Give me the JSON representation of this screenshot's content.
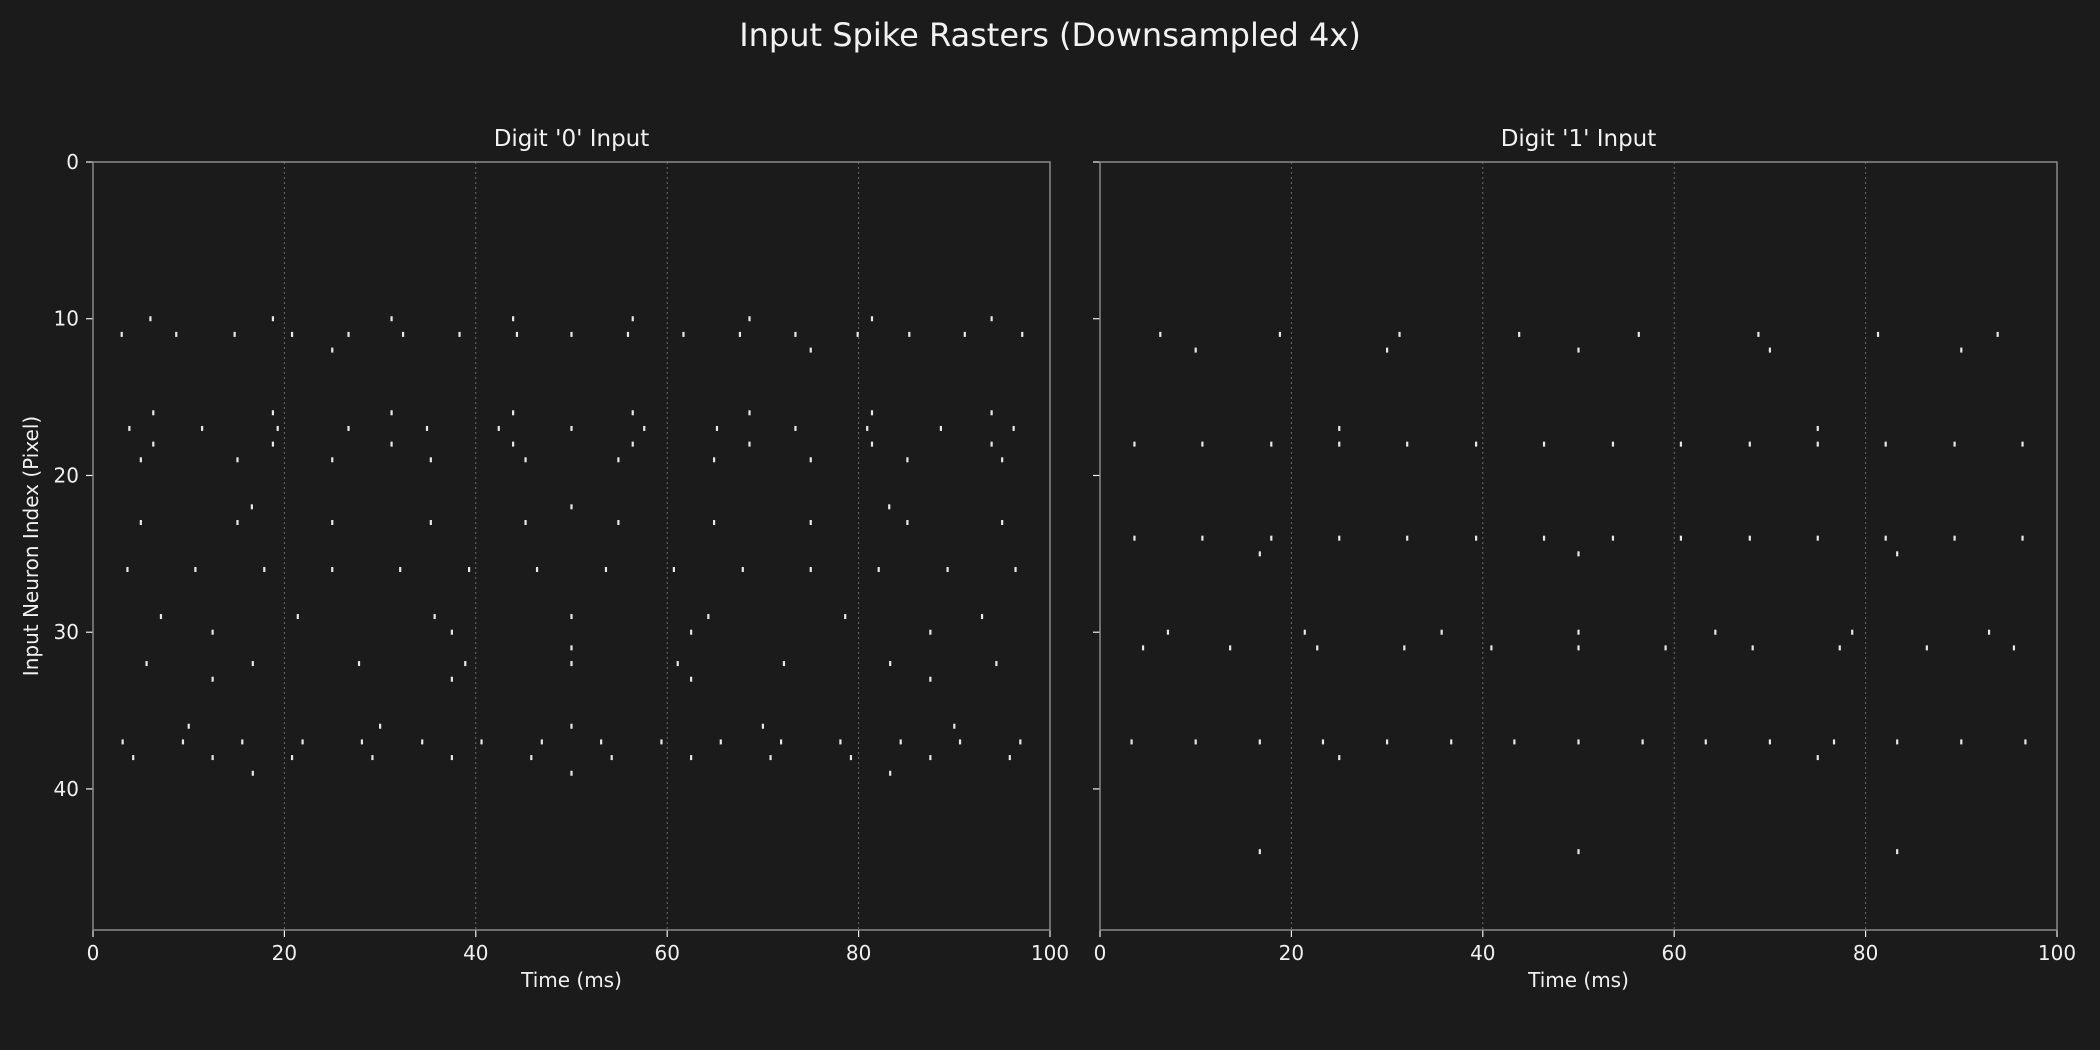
{
  "figure": {
    "title": "Input Spike Rasters (Downsampled 4x)",
    "background": "#1b1b1b",
    "spine_color": "#8a8a8a",
    "grid_color": "#8a8a8a",
    "spike_color": "#e8e8e8",
    "text_color": "#f0f0f0"
  },
  "chart_data": [
    {
      "type": "scatter",
      "marker": "vertical-tick",
      "title": "Digit '0' Input",
      "xlabel": "Time (ms)",
      "ylabel": "Input Neuron Index (Pixel)",
      "xlim": [
        0,
        100
      ],
      "ylim": [
        49,
        0
      ],
      "y_inverted": true,
      "xticks": [
        0,
        20,
        40,
        60,
        80,
        100
      ],
      "yticks": [
        0,
        10,
        20,
        30,
        40
      ],
      "grid": "x-dotted",
      "series": [
        {
          "spikes": [
            [
              3,
              11
            ],
            [
              6,
              10
            ],
            [
              8.7,
              11
            ],
            [
              14.8,
              11
            ],
            [
              18.8,
              10
            ],
            [
              20.8,
              11
            ],
            [
              25,
              12
            ],
            [
              26.7,
              11
            ],
            [
              31.2,
              10
            ],
            [
              32.4,
              11
            ],
            [
              38.3,
              11
            ],
            [
              43.9,
              10
            ],
            [
              44.3,
              11
            ],
            [
              50,
              11
            ],
            [
              55.9,
              11
            ],
            [
              56.4,
              10
            ],
            [
              61.7,
              11
            ],
            [
              67.6,
              11
            ],
            [
              68.6,
              10
            ],
            [
              73.4,
              11
            ],
            [
              75,
              12
            ],
            [
              79.9,
              11
            ],
            [
              81.4,
              10
            ],
            [
              85.3,
              11
            ],
            [
              91.1,
              11
            ],
            [
              93.9,
              10
            ],
            [
              97.1,
              11
            ],
            [
              3.8,
              17
            ],
            [
              6.3,
              16
            ],
            [
              11.4,
              17
            ],
            [
              18.8,
              16
            ],
            [
              19.3,
              17
            ],
            [
              26.7,
              17
            ],
            [
              31.2,
              16
            ],
            [
              34.9,
              17
            ],
            [
              42.4,
              17
            ],
            [
              43.9,
              16
            ],
            [
              50,
              17
            ],
            [
              56.4,
              16
            ],
            [
              57.6,
              17
            ],
            [
              65.2,
              17
            ],
            [
              68.6,
              16
            ],
            [
              73.4,
              17
            ],
            [
              80.9,
              17
            ],
            [
              81.4,
              16
            ],
            [
              88.6,
              17
            ],
            [
              93.9,
              16
            ],
            [
              96.2,
              17
            ],
            [
              6.3,
              18
            ],
            [
              18.8,
              18
            ],
            [
              31.2,
              18
            ],
            [
              43.9,
              18
            ],
            [
              56.4,
              18
            ],
            [
              68.6,
              18
            ],
            [
              81.4,
              18
            ],
            [
              93.9,
              18
            ],
            [
              5,
              19
            ],
            [
              15.1,
              19
            ],
            [
              25,
              19
            ],
            [
              35.3,
              19
            ],
            [
              45.2,
              19
            ],
            [
              54.9,
              19
            ],
            [
              64.9,
              19
            ],
            [
              75,
              19
            ],
            [
              85.1,
              19
            ],
            [
              95,
              19
            ],
            [
              16.6,
              22
            ],
            [
              50,
              22
            ],
            [
              83.2,
              22
            ],
            [
              5,
              23
            ],
            [
              15.1,
              23
            ],
            [
              25,
              23
            ],
            [
              35.3,
              23
            ],
            [
              45.2,
              23
            ],
            [
              54.9,
              23
            ],
            [
              64.9,
              23
            ],
            [
              75,
              23
            ],
            [
              85.1,
              23
            ],
            [
              95,
              23
            ],
            [
              3.6,
              26
            ],
            [
              10.7,
              26
            ],
            [
              17.9,
              26
            ],
            [
              25,
              26
            ],
            [
              32.1,
              26
            ],
            [
              39.3,
              26
            ],
            [
              46.4,
              26
            ],
            [
              53.6,
              26
            ],
            [
              60.7,
              26
            ],
            [
              67.9,
              26
            ],
            [
              75,
              26
            ],
            [
              82.1,
              26
            ],
            [
              89.3,
              26
            ],
            [
              96.4,
              26
            ],
            [
              7.1,
              29
            ],
            [
              21.4,
              29
            ],
            [
              35.7,
              29
            ],
            [
              50,
              29
            ],
            [
              64.3,
              29
            ],
            [
              78.6,
              29
            ],
            [
              92.9,
              29
            ],
            [
              12.5,
              30
            ],
            [
              37.5,
              30
            ],
            [
              62.5,
              30
            ],
            [
              87.5,
              30
            ],
            [
              50,
              31
            ],
            [
              5.6,
              32
            ],
            [
              16.7,
              32
            ],
            [
              27.8,
              32
            ],
            [
              38.9,
              32
            ],
            [
              50,
              32
            ],
            [
              61.1,
              32
            ],
            [
              72.2,
              32
            ],
            [
              83.3,
              32
            ],
            [
              94.4,
              32
            ],
            [
              12.5,
              33
            ],
            [
              37.5,
              33
            ],
            [
              62.5,
              33
            ],
            [
              87.5,
              33
            ],
            [
              10,
              36
            ],
            [
              30,
              36
            ],
            [
              50,
              36
            ],
            [
              70,
              36
            ],
            [
              90,
              36
            ],
            [
              3.1,
              37
            ],
            [
              9.4,
              37
            ],
            [
              15.6,
              37
            ],
            [
              21.9,
              37
            ],
            [
              28.1,
              37
            ],
            [
              34.4,
              37
            ],
            [
              40.6,
              37
            ],
            [
              46.9,
              37
            ],
            [
              53.1,
              37
            ],
            [
              59.4,
              37
            ],
            [
              65.6,
              37
            ],
            [
              71.9,
              37
            ],
            [
              78.1,
              37
            ],
            [
              84.4,
              37
            ],
            [
              90.6,
              37
            ],
            [
              96.9,
              37
            ],
            [
              4.2,
              38
            ],
            [
              12.5,
              38
            ],
            [
              20.8,
              38
            ],
            [
              29.2,
              38
            ],
            [
              37.5,
              38
            ],
            [
              45.8,
              38
            ],
            [
              54.2,
              38
            ],
            [
              62.5,
              38
            ],
            [
              70.8,
              38
            ],
            [
              79.2,
              38
            ],
            [
              87.5,
              38
            ],
            [
              95.8,
              38
            ],
            [
              16.7,
              39
            ],
            [
              50,
              39
            ],
            [
              83.3,
              39
            ]
          ]
        }
      ]
    },
    {
      "type": "scatter",
      "marker": "vertical-tick",
      "title": "Digit '1' Input",
      "xlabel": "Time (ms)",
      "xlim": [
        0,
        100
      ],
      "ylim": [
        49,
        0
      ],
      "y_inverted": true,
      "xticks": [
        0,
        20,
        40,
        60,
        80,
        100
      ],
      "yticks": [
        0,
        10,
        20,
        30,
        40
      ],
      "grid": "x-dotted",
      "series": [
        {
          "spikes": [
            [
              6.3,
              11
            ],
            [
              18.8,
              11
            ],
            [
              31.3,
              11
            ],
            [
              43.8,
              11
            ],
            [
              56.3,
              11
            ],
            [
              68.8,
              11
            ],
            [
              81.3,
              11
            ],
            [
              93.8,
              11
            ],
            [
              10,
              12
            ],
            [
              30,
              12
            ],
            [
              50,
              12
            ],
            [
              70,
              12
            ],
            [
              90,
              12
            ],
            [
              25,
              17
            ],
            [
              75,
              17
            ],
            [
              3.6,
              18
            ],
            [
              10.7,
              18
            ],
            [
              17.9,
              18
            ],
            [
              25,
              18
            ],
            [
              32.1,
              18
            ],
            [
              39.3,
              18
            ],
            [
              46.4,
              18
            ],
            [
              53.6,
              18
            ],
            [
              60.7,
              18
            ],
            [
              67.9,
              18
            ],
            [
              75,
              18
            ],
            [
              82.1,
              18
            ],
            [
              89.3,
              18
            ],
            [
              96.4,
              18
            ],
            [
              3.6,
              24
            ],
            [
              10.7,
              24
            ],
            [
              17.9,
              24
            ],
            [
              25,
              24
            ],
            [
              32.1,
              24
            ],
            [
              39.3,
              24
            ],
            [
              46.4,
              24
            ],
            [
              53.6,
              24
            ],
            [
              60.7,
              24
            ],
            [
              67.9,
              24
            ],
            [
              75,
              24
            ],
            [
              82.1,
              24
            ],
            [
              89.3,
              24
            ],
            [
              96.4,
              24
            ],
            [
              16.7,
              25
            ],
            [
              50,
              25
            ],
            [
              83.3,
              25
            ],
            [
              7.1,
              30
            ],
            [
              21.4,
              30
            ],
            [
              35.7,
              30
            ],
            [
              50,
              30
            ],
            [
              64.3,
              30
            ],
            [
              78.6,
              30
            ],
            [
              92.9,
              30
            ],
            [
              4.5,
              31
            ],
            [
              13.6,
              31
            ],
            [
              22.7,
              31
            ],
            [
              31.8,
              31
            ],
            [
              40.9,
              31
            ],
            [
              50,
              31
            ],
            [
              59.1,
              31
            ],
            [
              68.2,
              31
            ],
            [
              77.3,
              31
            ],
            [
              86.4,
              31
            ],
            [
              95.5,
              31
            ],
            [
              3.3,
              37
            ],
            [
              10,
              37
            ],
            [
              16.7,
              37
            ],
            [
              23.3,
              37
            ],
            [
              30,
              37
            ],
            [
              36.7,
              37
            ],
            [
              43.3,
              37
            ],
            [
              50,
              37
            ],
            [
              56.7,
              37
            ],
            [
              63.3,
              37
            ],
            [
              70,
              37
            ],
            [
              76.7,
              37
            ],
            [
              83.3,
              37
            ],
            [
              90,
              37
            ],
            [
              96.7,
              37
            ],
            [
              25,
              38
            ],
            [
              75,
              38
            ],
            [
              16.7,
              44
            ],
            [
              50,
              44
            ],
            [
              83.3,
              44
            ]
          ]
        }
      ]
    }
  ]
}
